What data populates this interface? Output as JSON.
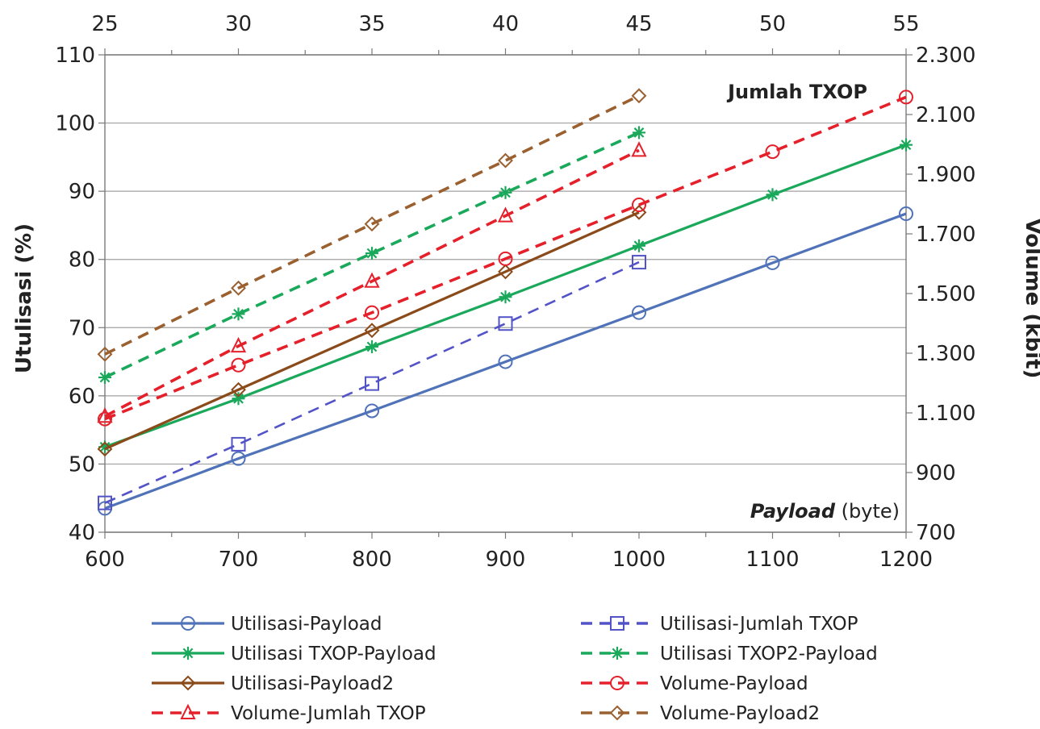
{
  "chart_data": {
    "type": "line",
    "title": "",
    "xlabel": "Payload (byte)",
    "xlabel_italic_part": "Payload",
    "xlabel_rest_part": " (byte)",
    "x2label": "Jumlah TXOP",
    "ylabel": "Utulisasi (%)",
    "y2label": "Volume (kbit)",
    "x_bottom": {
      "range": [
        600,
        1200
      ],
      "ticks": [
        "600",
        "700",
        "800",
        "900",
        "1000",
        "1100",
        "1200"
      ]
    },
    "x_top": {
      "range": [
        25,
        55
      ],
      "ticks": [
        "25",
        "30",
        "35",
        "40",
        "45",
        "50",
        "55"
      ]
    },
    "y_left": {
      "range": [
        40,
        110
      ],
      "ticks": [
        "40",
        "50",
        "60",
        "70",
        "80",
        "90",
        "100",
        "110"
      ]
    },
    "y_right": {
      "range": [
        700,
        2300
      ],
      "ticks": [
        "700",
        "900",
        "1.100",
        "1.300",
        "1.500",
        "1.700",
        "1.900",
        "2.100",
        "2.300"
      ]
    },
    "grid": "horizontal",
    "legend_position": "bottom",
    "series": [
      {
        "name": "Utilisasi-Payload",
        "color": "#4f72b8",
        "dash": "solid",
        "marker": "circle",
        "x": [
          600,
          700,
          800,
          900,
          1000,
          1100,
          1200
        ],
        "y": [
          43.5,
          50.8,
          57.8,
          65.0,
          72.2,
          79.5,
          86.7
        ]
      },
      {
        "name": "Utilisasi-Jumlah TXOP",
        "color": "#5353c8",
        "dash": "dashed",
        "marker": "square",
        "x": [
          600,
          700,
          800,
          900,
          1000
        ],
        "y": [
          44.3,
          52.9,
          61.8,
          70.6,
          79.6
        ]
      },
      {
        "name": "Utilisasi TXOP-Payload",
        "color": "#1aa85a",
        "dash": "solid",
        "marker": "star",
        "x": [
          600,
          700,
          800,
          900,
          1000,
          1100,
          1200
        ],
        "y": [
          52.5,
          59.6,
          67.2,
          74.5,
          82.0,
          89.5,
          96.8
        ]
      },
      {
        "name": "Utilisasi TXOP2-Payload",
        "color": "#1aa85a",
        "dash": "dashed",
        "marker": "star",
        "x": [
          600,
          700,
          800,
          900,
          1000
        ],
        "y": [
          62.7,
          72.0,
          80.9,
          89.8,
          98.6
        ]
      },
      {
        "name": "Utilisasi-Payload2",
        "color": "#8a4a1a",
        "dash": "solid",
        "marker": "diamond",
        "x": [
          600,
          700,
          800,
          900,
          1000
        ],
        "y": [
          52.2,
          60.9,
          69.6,
          78.2,
          86.9
        ]
      },
      {
        "name": "Volume-Payload",
        "color": "#e5202a",
        "dash": "dashed",
        "marker": "circle",
        "x": [
          600,
          700,
          800,
          900,
          1000,
          1100,
          1200
        ],
        "y": [
          56.6,
          64.5,
          72.2,
          80.1,
          88.0,
          95.8,
          103.8
        ]
      },
      {
        "name": "Volume-Jumlah TXOP",
        "color": "#e5202a",
        "dash": "dashed",
        "marker": "triangle",
        "x": [
          600,
          700,
          800,
          900,
          1000
        ],
        "y": [
          57.0,
          67.3,
          76.8,
          86.4,
          96.0
        ]
      },
      {
        "name": "Volume-Payload2",
        "color": "#9a6030",
        "dash": "dashed",
        "marker": "diamond",
        "x": [
          600,
          700,
          800,
          900,
          1000
        ],
        "y": [
          66.1,
          75.8,
          85.2,
          94.5,
          104.0
        ]
      }
    ]
  }
}
